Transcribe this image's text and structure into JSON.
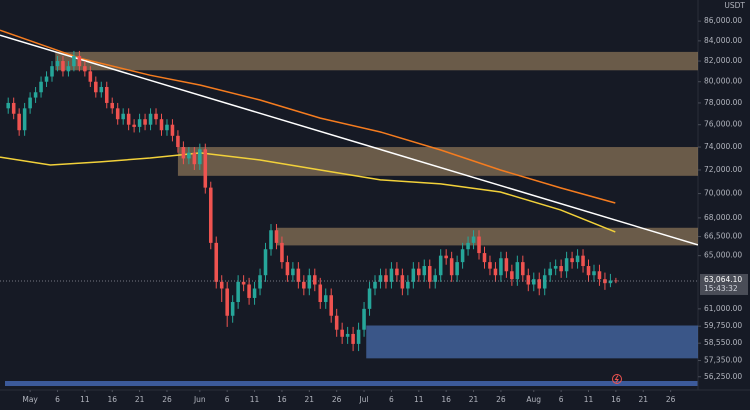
{
  "chart_data": {
    "type": "candlestick",
    "currency": "USDT",
    "log_scale": true,
    "grid": false,
    "up_color": "#26a69a",
    "down_color": "#ef5350",
    "xlim": [
      -5.5,
      122
    ],
    "ylim": [
      55500,
      88200
    ],
    "x": [
      -4,
      -3,
      -2,
      -1,
      0,
      1,
      2,
      3,
      4,
      5,
      6,
      7,
      8,
      9,
      10,
      11,
      12,
      13,
      14,
      15,
      16,
      17,
      18,
      19,
      20,
      21,
      22,
      23,
      24,
      25,
      26,
      27,
      28,
      29,
      30,
      31,
      32,
      33,
      34,
      35,
      36,
      37,
      38,
      39,
      40,
      41,
      42,
      43,
      44,
      45,
      46,
      47,
      48,
      49,
      50,
      51,
      52,
      53,
      54,
      55,
      56,
      57,
      58,
      59,
      60,
      61,
      62,
      63,
      64,
      65,
      66,
      67,
      68,
      69,
      70,
      71,
      72,
      73,
      74,
      75,
      76,
      77,
      78,
      79,
      80,
      81,
      82,
      83,
      84,
      85,
      86,
      87,
      88,
      89,
      90,
      91,
      92,
      93,
      94,
      95,
      96,
      97,
      98,
      99,
      100,
      101,
      102,
      103,
      104,
      105,
      106,
      107
    ],
    "open": [
      77500,
      78000,
      77000,
      75500,
      77500,
      78500,
      79000,
      80000,
      80500,
      81500,
      82000,
      81000,
      81500,
      82500,
      81500,
      81000,
      80000,
      79000,
      79500,
      78000,
      77500,
      76500,
      77000,
      76000,
      75800,
      76500,
      76000,
      77000,
      76500,
      75500,
      76000,
      75000,
      74000,
      73000,
      73500,
      72500,
      73800,
      70500,
      66000,
      63000,
      62500,
      60500,
      61500,
      63000,
      62800,
      61800,
      62500,
      63500,
      65500,
      67000,
      66000,
      64500,
      63500,
      64000,
      63000,
      62500,
      63500,
      62800,
      61500,
      62000,
      60500,
      59500,
      59000,
      59200,
      58500,
      59500,
      61000,
      62500,
      63000,
      63500,
      63000,
      64000,
      63500,
      62500,
      63000,
      64000,
      63500,
      64200,
      63000,
      63500,
      65000,
      64800,
      63500,
      64500,
      65500,
      66000,
      66500,
      65200,
      64500,
      64000,
      63500,
      64800,
      63800,
      63200,
      64500,
      63500,
      62800,
      63200,
      62500,
      63500,
      64000,
      64200,
      63800,
      64800,
      64500,
      65000,
      64200,
      63500,
      63800,
      63200,
      62900,
      63100
    ],
    "high": [
      78500,
      78500,
      77500,
      78000,
      79000,
      79500,
      80500,
      81000,
      82000,
      82500,
      82500,
      82000,
      83000,
      83000,
      82000,
      81500,
      80500,
      80000,
      80000,
      78500,
      78000,
      77500,
      77500,
      76500,
      77000,
      77000,
      77500,
      77500,
      77000,
      76500,
      76500,
      75500,
      74500,
      74000,
      74000,
      74300,
      74300,
      71000,
      66500,
      63500,
      63000,
      62000,
      63500,
      63500,
      63300,
      63000,
      64000,
      66000,
      67500,
      67500,
      66500,
      65000,
      64500,
      64500,
      63500,
      64000,
      64000,
      63300,
      62500,
      62500,
      61000,
      60000,
      59700,
      59700,
      60000,
      61500,
      63000,
      63500,
      64000,
      64000,
      64500,
      64500,
      64000,
      63500,
      64500,
      64500,
      64700,
      64700,
      64000,
      65500,
      65500,
      65300,
      65000,
      66000,
      66500,
      67000,
      67000,
      65700,
      65000,
      64500,
      65300,
      65300,
      64300,
      65000,
      65000,
      64000,
      63700,
      63700,
      64000,
      64500,
      64700,
      64700,
      65300,
      65300,
      65500,
      65500,
      64700,
      64300,
      64300,
      63700,
      63600,
      63300
    ],
    "low": [
      77000,
      76500,
      75000,
      75000,
      77000,
      78000,
      78500,
      79500,
      80000,
      81000,
      80500,
      80500,
      81000,
      81000,
      80500,
      79500,
      78500,
      78500,
      77500,
      77000,
      76000,
      76000,
      75500,
      75300,
      75300,
      75500,
      75500,
      76000,
      75000,
      75000,
      74500,
      73500,
      72500,
      72500,
      72000,
      72000,
      70000,
      65500,
      62500,
      61500,
      59700,
      60000,
      61000,
      62300,
      61300,
      61300,
      62000,
      63000,
      65000,
      65500,
      64000,
      63000,
      63000,
      62500,
      62000,
      62000,
      62300,
      61000,
      61000,
      60000,
      59000,
      58500,
      58500,
      58000,
      58000,
      59000,
      60500,
      62000,
      62500,
      62500,
      62500,
      63000,
      62000,
      62000,
      62500,
      63000,
      63000,
      62500,
      62500,
      63000,
      64300,
      63000,
      63000,
      64000,
      65000,
      65500,
      64700,
      64000,
      63500,
      63000,
      63000,
      63300,
      62700,
      62700,
      63000,
      62300,
      62300,
      62000,
      62000,
      63000,
      63500,
      63300,
      63300,
      64000,
      64000,
      63700,
      63000,
      63000,
      62700,
      62400,
      62600,
      62900
    ],
    "close": [
      78000,
      77000,
      75500,
      77500,
      78500,
      79000,
      80000,
      80500,
      81500,
      82000,
      81000,
      81500,
      82500,
      81500,
      81000,
      80000,
      79000,
      79500,
      78000,
      77500,
      76500,
      77000,
      76000,
      75800,
      76500,
      76000,
      77000,
      76500,
      75500,
      76000,
      75000,
      74000,
      73000,
      73500,
      72500,
      73800,
      70500,
      66000,
      63000,
      62500,
      60500,
      61500,
      63000,
      62800,
      61800,
      62500,
      63500,
      65500,
      67000,
      66000,
      64500,
      63500,
      64000,
      63000,
      62500,
      63500,
      62800,
      61500,
      62000,
      60500,
      59500,
      59000,
      59200,
      58500,
      59500,
      61000,
      62500,
      63000,
      63500,
      63000,
      64000,
      63500,
      62500,
      63000,
      64000,
      63500,
      64200,
      63000,
      63500,
      65000,
      64800,
      63500,
      64500,
      65500,
      66000,
      66500,
      65200,
      64500,
      64000,
      63500,
      64800,
      63800,
      63200,
      64500,
      63500,
      62800,
      63200,
      62500,
      63500,
      64000,
      64200,
      63800,
      64800,
      64500,
      65000,
      64200,
      63500,
      63800,
      63200,
      62900,
      63100,
      63064.1
    ],
    "lines": [
      {
        "color": "#f57c1f",
        "x": [
          -5.5,
          9.1,
          21.9,
          31.1,
          42,
          53,
          64,
          75,
          85.9,
          96.9,
          106.9
        ],
        "y": [
          85080,
          82280,
          80630,
          79680,
          78270,
          76600,
          75340,
          73740,
          72000,
          70480,
          69220
        ]
      },
      {
        "color": "#f2d13a",
        "x": [
          -5.5,
          3.7,
          12.8,
          21.9,
          31.1,
          42,
          53,
          64,
          75,
          85.9,
          96.9,
          106.9
        ],
        "y": [
          73120,
          72430,
          72700,
          73040,
          73480,
          72860,
          72000,
          71150,
          70810,
          70130,
          68650,
          66870
        ]
      },
      {
        "color": "#ffffff",
        "x": [
          -5.5,
          122
        ],
        "y": [
          84570,
          65840
        ]
      }
    ],
    "zones": [
      {
        "color": "rgba(176,145,104,0.55)",
        "from": 4.6,
        "range": [
          81100,
          82900
        ]
      },
      {
        "color": "rgba(176,145,104,0.55)",
        "from": 27,
        "range": [
          71500,
          74000
        ]
      },
      {
        "color": "rgba(176,145,104,0.55)",
        "from": 45,
        "range": [
          65800,
          67200
        ]
      },
      {
        "color": "rgba(74,112,178,0.7)",
        "from": 61.4,
        "range": [
          57500,
          59800
        ]
      }
    ],
    "last_price": {
      "value": 63064.1,
      "label": "63,064.10"
    },
    "countdown": "15:43:32",
    "yticks": [
      {
        "value": 86000,
        "label": "86,000.00"
      },
      {
        "value": 84000,
        "label": "84,000.00"
      },
      {
        "value": 82000,
        "label": "82,000.00"
      },
      {
        "value": 80000,
        "label": "80,000.00"
      },
      {
        "value": 78000,
        "label": "78,000.00"
      },
      {
        "value": 76000,
        "label": "76,000.00"
      },
      {
        "value": 74000,
        "label": "74,000.00"
      },
      {
        "value": 72000,
        "label": "72,000.00"
      },
      {
        "value": 70000,
        "label": "70,000.00"
      },
      {
        "value": 68000,
        "label": "68,000.00"
      },
      {
        "value": 66500,
        "label": "66,500.00"
      },
      {
        "value": 65000,
        "label": "65,000.00"
      },
      {
        "value": 61000,
        "label": "61,000.00"
      },
      {
        "value": 59750,
        "label": "59,750.00"
      },
      {
        "value": 58550,
        "label": "58,550.00"
      },
      {
        "value": 57350,
        "label": "57,350.00"
      },
      {
        "value": 56250,
        "label": "56,250.00"
      }
    ],
    "xticks": [
      {
        "value": 0,
        "label": "May"
      },
      {
        "value": 5,
        "label": "6"
      },
      {
        "value": 10,
        "label": "11"
      },
      {
        "value": 15,
        "label": "16"
      },
      {
        "value": 20,
        "label": "21"
      },
      {
        "value": 25,
        "label": "26"
      },
      {
        "value": 31,
        "label": "Jun"
      },
      {
        "value": 36,
        "label": "6"
      },
      {
        "value": 41,
        "label": "11"
      },
      {
        "value": 46,
        "label": "16"
      },
      {
        "value": 51,
        "label": "21"
      },
      {
        "value": 56,
        "label": "26"
      },
      {
        "value": 61,
        "label": "Jul"
      },
      {
        "value": 66,
        "label": "6"
      },
      {
        "value": 71,
        "label": "11"
      },
      {
        "value": 76,
        "label": "16"
      },
      {
        "value": 81,
        "label": "21"
      },
      {
        "value": 86,
        "label": "26"
      },
      {
        "value": 92,
        "label": "Aug"
      },
      {
        "value": 97,
        "label": "6"
      },
      {
        "value": 102,
        "label": "11"
      },
      {
        "value": 107,
        "label": "16"
      },
      {
        "value": 112,
        "label": "21"
      },
      {
        "value": 117,
        "label": "26"
      }
    ]
  }
}
